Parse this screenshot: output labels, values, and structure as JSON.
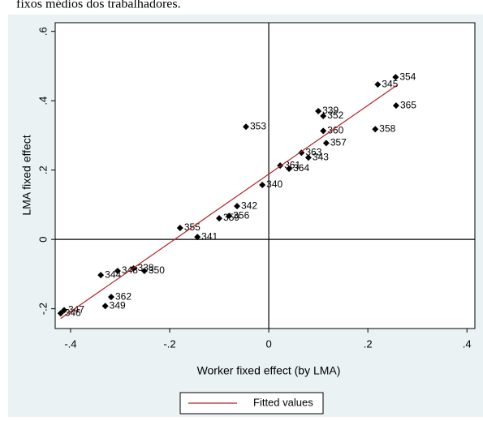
{
  "caption": "fixos médios dos trabalhadores.",
  "chart_data": {
    "type": "scatter",
    "xlabel": "Worker fixed effect (by LMA)",
    "ylabel": "LMA fixed effect",
    "xlim": [
      -0.431,
      0.416
    ],
    "ylim": [
      -0.257,
      0.625
    ],
    "xticks": [
      {
        "value": -0.4,
        "label": "-.4"
      },
      {
        "value": -0.2,
        "label": "-.2"
      },
      0,
      {
        "value": 0.2,
        "label": ".2"
      },
      {
        "value": 0.4,
        "label": ".4"
      }
    ],
    "yticks": [
      {
        "value": -0.2,
        "label": "-.2"
      },
      0,
      {
        "value": 0.2,
        "label": ".2"
      },
      {
        "value": 0.4,
        "label": ".4"
      },
      {
        "value": 0.6,
        "label": ".6"
      }
    ],
    "reference_lines": {
      "x": 0,
      "y": 0
    },
    "legend": "bottom",
    "series": [
      {
        "color": "#000000",
        "marker": "diamond",
        "x": [
          0.256,
          0.22,
          0.257,
          0.215,
          0.1,
          0.11,
          0.11,
          -0.046,
          0.116,
          0.066,
          0.08,
          0.023,
          0.041,
          -0.013,
          -0.064,
          -0.08,
          -0.1,
          -0.179,
          -0.144,
          -0.339,
          -0.305,
          -0.273,
          -0.251,
          -0.318,
          -0.33,
          -0.413,
          -0.42
        ],
        "values": [
          0.468,
          0.447,
          0.386,
          0.318,
          0.37,
          0.356,
          0.313,
          0.325,
          0.278,
          0.25,
          0.236,
          0.213,
          0.204,
          0.157,
          0.096,
          0.068,
          0.061,
          0.033,
          0.007,
          -0.103,
          -0.091,
          -0.084,
          -0.091,
          -0.166,
          -0.192,
          -0.204,
          -0.213
        ],
        "labels": [
          "354",
          "345",
          "365",
          "358",
          "339",
          "352",
          "360",
          "353",
          "357",
          "363",
          "343",
          "361",
          "364",
          "340",
          "342",
          "356",
          "359",
          "355",
          "341",
          "344",
          "348",
          "338",
          "350",
          "362",
          "349",
          "347",
          "346"
        ]
      },
      {
        "name": "Fitted values",
        "type": "line",
        "color": "#b22222",
        "x": [
          -0.42,
          0.26
        ],
        "values": [
          -0.228,
          0.446
        ]
      }
    ]
  }
}
